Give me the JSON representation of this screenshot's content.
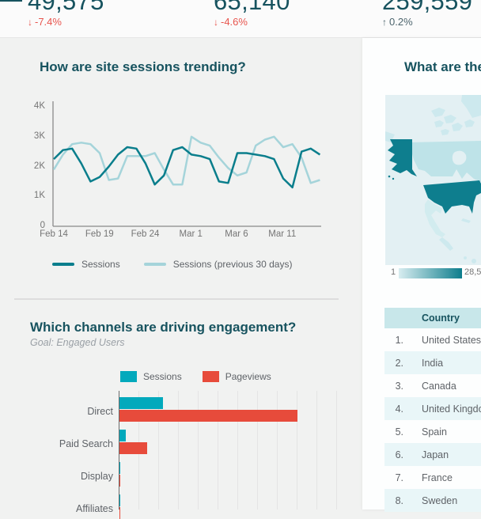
{
  "palette": {
    "dark_teal": "#17535f",
    "line_dark": "#0a7e8c",
    "line_light": "#a5d4da",
    "bar_teal": "#02a9bc",
    "bar_red": "#e74b3b",
    "delta_down_red": "#e8554e",
    "delta_up": "#4d656d",
    "table_header_bg": "#c8e7ea",
    "row_alt_bg": "#e9f6f8",
    "map_us": "#0e7e8e",
    "map_canada": "#bee3e8",
    "map_mexico": "#d2ecef",
    "map_ocean": "#e3f0f3",
    "map_land_other": "#cde9ee",
    "legend_grad_from": "#d8edf0",
    "legend_grad_to": "#0d7d8c"
  },
  "scorecards": [
    {
      "value": "49,575",
      "delta": "-7.4%",
      "direction": "down",
      "arrow": "↓"
    },
    {
      "value": "65,140",
      "delta": "-4.6%",
      "direction": "down",
      "arrow": "↓"
    },
    {
      "value": "259,559",
      "delta": "0.2%",
      "direction": "up",
      "arrow": "↑"
    }
  ],
  "chart_data": [
    {
      "type": "line",
      "title": "How are site sessions trending?",
      "x_tick_labels": [
        "Feb 14",
        "Feb 19",
        "Feb 24",
        "Mar 1",
        "Mar 6",
        "Mar 11"
      ],
      "y_tick_labels": [
        "4K",
        "3K",
        "2K",
        "1K",
        "0"
      ],
      "ylim": [
        0,
        4000
      ],
      "grid": false,
      "legend_position": "bottom",
      "series": [
        {
          "name": "Sessions",
          "values": [
            2250,
            2550,
            2600,
            2100,
            1500,
            1650,
            2000,
            2400,
            2650,
            2600,
            2100,
            1400,
            1700,
            2550,
            2650,
            2400,
            2350,
            2250,
            1500,
            1450,
            2450,
            2450,
            2400,
            2350,
            2250,
            1600,
            1300,
            2500,
            2600,
            2400
          ]
        },
        {
          "name": "Sessions (previous 30 days)",
          "values": [
            1900,
            2400,
            2750,
            2800,
            2750,
            2450,
            1550,
            1600,
            2350,
            2350,
            2350,
            2450,
            1900,
            1400,
            1400,
            3000,
            2800,
            2700,
            2300,
            1950,
            1700,
            1800,
            2700,
            2900,
            3000,
            2650,
            2750,
            2300,
            1450,
            1550
          ]
        }
      ]
    },
    {
      "type": "bar",
      "title": "Which channels are driving engagement?",
      "subtitle": "Goal: Engaged Users",
      "orientation": "horizontal",
      "categories": [
        "Direct",
        "Paid Search",
        "Display",
        "Affiliates"
      ],
      "xlim": [
        0,
        11500
      ],
      "grid": true,
      "legend_position": "top",
      "series": [
        {
          "name": "Sessions",
          "values": [
            2200,
            320,
            50,
            30
          ]
        },
        {
          "name": "Pageviews",
          "values": [
            9000,
            1400,
            60,
            40
          ]
        }
      ]
    },
    {
      "type": "choropleth",
      "title": "What are the",
      "region_visible": "North America",
      "legend_min": "1",
      "legend_max_visible": "28,5",
      "shading": [
        {
          "country": "United States",
          "level": "high"
        },
        {
          "country": "Canada",
          "level": "low"
        },
        {
          "country": "Mexico",
          "level": "lowest"
        }
      ]
    }
  ],
  "countries": {
    "header": "Country",
    "rows": [
      {
        "rank": "1.",
        "name": "United States"
      },
      {
        "rank": "2.",
        "name": "India"
      },
      {
        "rank": "3.",
        "name": "Canada"
      },
      {
        "rank": "4.",
        "name": "United Kingdom"
      },
      {
        "rank": "5.",
        "name": "Spain"
      },
      {
        "rank": "6.",
        "name": "Japan"
      },
      {
        "rank": "7.",
        "name": "France"
      },
      {
        "rank": "8.",
        "name": "Sweden"
      }
    ]
  }
}
